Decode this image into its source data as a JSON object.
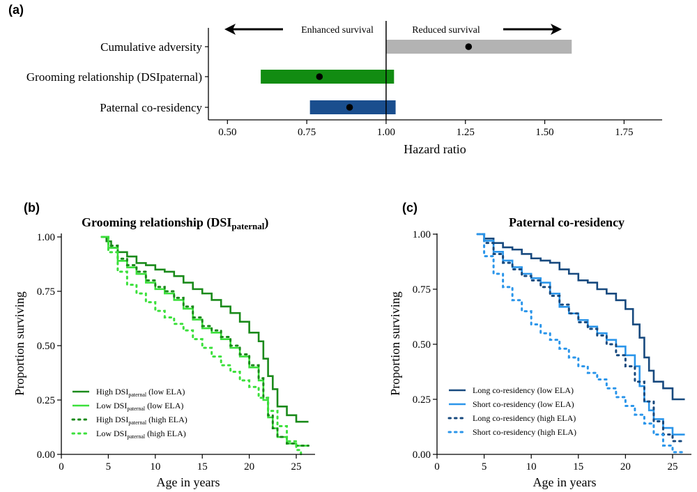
{
  "chart_data": [
    {
      "panel": "(a)",
      "type": "bar",
      "orientation": "horizontal",
      "xlabel": "Hazard ratio",
      "xlim": [
        0.44,
        1.87
      ],
      "xticks": [
        "0.50",
        "0.75",
        "1.00",
        "1.25",
        "1.50",
        "1.75"
      ],
      "xtick_values": [
        0.5,
        0.75,
        1.0,
        1.25,
        1.5,
        1.75
      ],
      "reference_line": 1.0,
      "annotations": {
        "left": "Enhanced survival",
        "right": "Reduced survival"
      },
      "categories": [
        "Cumulative adversity",
        "Grooming relationship (DSIpaternal)",
        "Paternal co-residency"
      ],
      "estimates": [
        1.26,
        0.79,
        0.885
      ],
      "lower": [
        1.0,
        0.605,
        0.76
      ],
      "upper": [
        1.585,
        1.025,
        1.03
      ],
      "colors": [
        "#b3b3b3",
        "#128c12",
        "#1a4e8e"
      ]
    },
    {
      "panel": "(b)",
      "type": "line",
      "title_main": "Grooming relationship (DSI",
      "title_sub": "paternal",
      "title_end": ")",
      "xlabel": "Age in years",
      "ylabel": "Proportion surviving",
      "xlim": [
        0,
        27
      ],
      "ylim": [
        0,
        1
      ],
      "xticks": [
        "0",
        "5",
        "10",
        "15",
        "20",
        "25"
      ],
      "xtick_values": [
        0,
        5,
        10,
        15,
        20,
        25
      ],
      "yticks": [
        "0.00",
        "0.25",
        "0.50",
        "0.75",
        "1.00"
      ],
      "ytick_values": [
        0,
        0.25,
        0.5,
        0.75,
        1.0
      ],
      "series": [
        {
          "legend_main": "High DSI",
          "legend_sub": "paternal",
          "legend_end": " (low ELA)",
          "color": "#1a8a1a",
          "dashed": false,
          "x": [
            4.3,
            4.8,
            5.3,
            6.0,
            7.0,
            8.0,
            9.0,
            10.0,
            11.0,
            12.0,
            13.0,
            14.0,
            15.0,
            16.0,
            17.0,
            18.0,
            19.0,
            20.0,
            21.0,
            21.5,
            22.0,
            22.5,
            23.0,
            24.0,
            25.0,
            26.3
          ],
          "y": [
            1.0,
            0.98,
            0.95,
            0.93,
            0.91,
            0.88,
            0.87,
            0.85,
            0.84,
            0.82,
            0.79,
            0.76,
            0.74,
            0.71,
            0.68,
            0.65,
            0.61,
            0.56,
            0.52,
            0.44,
            0.36,
            0.3,
            0.22,
            0.18,
            0.15,
            0.15
          ]
        },
        {
          "legend_main": "Low DSI",
          "legend_sub": "paternal",
          "legend_end": " (low ELA)",
          "color": "#3be03b",
          "dashed": false,
          "x": [
            4.3,
            5.0,
            6.0,
            7.0,
            8.0,
            9.0,
            10.0,
            11.0,
            12.0,
            13.0,
            14.0,
            15.0,
            16.0,
            17.0,
            18.0,
            19.0,
            20.0,
            21.0,
            21.5,
            22.0,
            22.5,
            23.0,
            24.0,
            25.0,
            26.3
          ],
          "y": [
            1.0,
            0.95,
            0.89,
            0.86,
            0.83,
            0.79,
            0.76,
            0.74,
            0.71,
            0.67,
            0.62,
            0.58,
            0.56,
            0.53,
            0.49,
            0.45,
            0.4,
            0.34,
            0.25,
            0.17,
            0.12,
            0.08,
            0.05,
            0.04,
            0.04
          ]
        },
        {
          "legend_main": "High DSI",
          "legend_sub": "paternal",
          "legend_end": " (high ELA)",
          "color": "#1a8a1a",
          "dashed": true,
          "x": [
            4.3,
            5.0,
            6.0,
            7.0,
            8.0,
            9.0,
            10.0,
            11.0,
            12.0,
            13.0,
            14.0,
            15.0,
            16.0,
            17.0,
            18.0,
            19.0,
            20.0,
            21.0,
            21.5,
            22.0,
            22.5,
            23.0,
            24.0,
            25.0,
            26.3
          ],
          "y": [
            1.0,
            0.96,
            0.9,
            0.87,
            0.84,
            0.8,
            0.77,
            0.75,
            0.72,
            0.68,
            0.63,
            0.59,
            0.57,
            0.54,
            0.5,
            0.46,
            0.41,
            0.35,
            0.26,
            0.18,
            0.12,
            0.08,
            0.05,
            0.04,
            0.04
          ]
        },
        {
          "legend_main": "Low DSI",
          "legend_sub": "paternal",
          "legend_end": " (high ELA)",
          "color": "#3be03b",
          "dashed": true,
          "x": [
            4.3,
            5.0,
            6.0,
            7.0,
            8.0,
            9.0,
            10.0,
            11.0,
            12.0,
            13.0,
            14.0,
            15.0,
            16.0,
            17.0,
            18.0,
            19.0,
            20.0,
            21.0,
            22.0,
            23.0,
            24.0,
            25.0,
            25.5
          ],
          "y": [
            1.0,
            0.93,
            0.84,
            0.78,
            0.74,
            0.7,
            0.66,
            0.63,
            0.6,
            0.57,
            0.53,
            0.49,
            0.45,
            0.41,
            0.38,
            0.34,
            0.31,
            0.26,
            0.2,
            0.13,
            0.06,
            0.02,
            0.0
          ]
        }
      ]
    },
    {
      "panel": "(c)",
      "type": "line",
      "title_main": "Paternal co-residency",
      "xlabel": "Age in years",
      "ylabel": "Proportion surviving",
      "xlim": [
        0,
        27
      ],
      "ylim": [
        0,
        1
      ],
      "xticks": [
        "0",
        "5",
        "10",
        "15",
        "20",
        "25"
      ],
      "xtick_values": [
        0,
        5,
        10,
        15,
        20,
        25
      ],
      "yticks": [
        "0.00",
        "0.25",
        "0.50",
        "0.75",
        "1.00"
      ],
      "ytick_values": [
        0,
        0.25,
        0.5,
        0.75,
        1.0
      ],
      "series": [
        {
          "legend_main": "Long co-residency (low ELA)",
          "color": "#17497e",
          "dashed": false,
          "x": [
            4.3,
            5.0,
            6.0,
            7.0,
            8.0,
            9.0,
            10.0,
            11.0,
            12.0,
            13.0,
            14.0,
            15.0,
            16.0,
            17.0,
            18.0,
            19.0,
            20.0,
            20.8,
            21.5,
            22.0,
            22.5,
            23.0,
            24.0,
            25.0,
            26.3
          ],
          "y": [
            1.0,
            0.98,
            0.96,
            0.94,
            0.93,
            0.91,
            0.89,
            0.88,
            0.87,
            0.84,
            0.82,
            0.79,
            0.78,
            0.75,
            0.73,
            0.7,
            0.66,
            0.59,
            0.53,
            0.44,
            0.38,
            0.33,
            0.3,
            0.25,
            0.25
          ]
        },
        {
          "legend_main": "Short co-residency (low ELA)",
          "color": "#2a95ea",
          "dashed": false,
          "x": [
            4.3,
            5.0,
            6.0,
            7.0,
            8.0,
            9.0,
            10.0,
            11.0,
            12.0,
            13.0,
            14.0,
            15.0,
            16.0,
            17.0,
            18.0,
            19.0,
            20.0,
            21.0,
            21.5,
            22.0,
            22.5,
            23.0,
            24.0,
            25.0,
            26.3
          ],
          "y": [
            1.0,
            0.97,
            0.92,
            0.88,
            0.85,
            0.82,
            0.8,
            0.78,
            0.73,
            0.67,
            0.64,
            0.61,
            0.58,
            0.55,
            0.52,
            0.49,
            0.45,
            0.4,
            0.31,
            0.24,
            0.2,
            0.16,
            0.12,
            0.09,
            0.09
          ]
        },
        {
          "legend_main": "Long co-residency (high ELA)",
          "color": "#17497e",
          "dashed": true,
          "x": [
            4.3,
            5.0,
            6.0,
            7.0,
            8.0,
            9.0,
            10.0,
            11.0,
            12.0,
            13.0,
            14.0,
            15.0,
            16.0,
            17.0,
            18.0,
            19.0,
            20.0,
            21.0,
            22.0,
            23.0,
            24.0,
            25.0,
            26.3
          ],
          "y": [
            1.0,
            0.96,
            0.91,
            0.87,
            0.84,
            0.81,
            0.79,
            0.76,
            0.72,
            0.68,
            0.64,
            0.6,
            0.57,
            0.54,
            0.5,
            0.45,
            0.4,
            0.33,
            0.24,
            0.15,
            0.09,
            0.06,
            0.06
          ]
        },
        {
          "legend_main": "Short co-residency (high ELA)",
          "color": "#2a95ea",
          "dashed": true,
          "x": [
            4.3,
            5.0,
            6.0,
            7.0,
            8.0,
            9.0,
            10.0,
            11.0,
            12.0,
            13.0,
            14.0,
            15.0,
            16.0,
            17.0,
            18.0,
            19.0,
            20.0,
            21.0,
            22.0,
            23.0,
            24.0,
            25.0,
            26.0
          ],
          "y": [
            1.0,
            0.9,
            0.82,
            0.76,
            0.7,
            0.65,
            0.59,
            0.55,
            0.52,
            0.48,
            0.44,
            0.4,
            0.37,
            0.34,
            0.3,
            0.26,
            0.22,
            0.18,
            0.14,
            0.09,
            0.04,
            0.01,
            0.0
          ]
        }
      ]
    }
  ]
}
